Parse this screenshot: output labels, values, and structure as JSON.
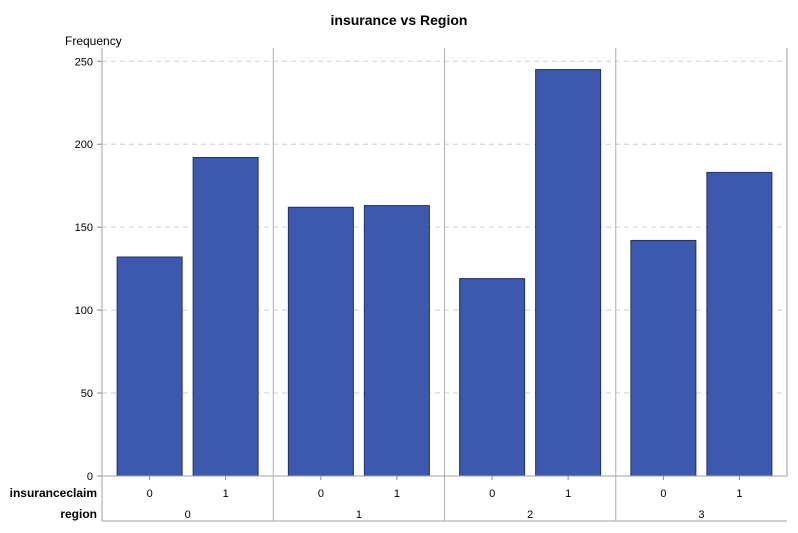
{
  "chart_data": {
    "type": "bar",
    "title": "insurance vs Region",
    "ylabel": "Frequency",
    "ylim": [
      0,
      260
    ],
    "yticks": [
      0,
      50,
      100,
      150,
      200,
      250
    ],
    "grid": true,
    "bar_color": "#3d59ad",
    "bar_edge_color": "#1f2f6f",
    "inner_axis_label": "insuranceclaim",
    "outer_axis_label": "region",
    "groups": [
      {
        "region": "0",
        "bars": [
          {
            "insuranceclaim": "0",
            "value": 132
          },
          {
            "insuranceclaim": "1",
            "value": 192
          }
        ]
      },
      {
        "region": "1",
        "bars": [
          {
            "insuranceclaim": "0",
            "value": 162
          },
          {
            "insuranceclaim": "1",
            "value": 163
          }
        ]
      },
      {
        "region": "2",
        "bars": [
          {
            "insuranceclaim": "0",
            "value": 119
          },
          {
            "insuranceclaim": "1",
            "value": 245
          }
        ]
      },
      {
        "region": "3",
        "bars": [
          {
            "insuranceclaim": "0",
            "value": 142
          },
          {
            "insuranceclaim": "1",
            "value": 183
          }
        ]
      }
    ]
  }
}
